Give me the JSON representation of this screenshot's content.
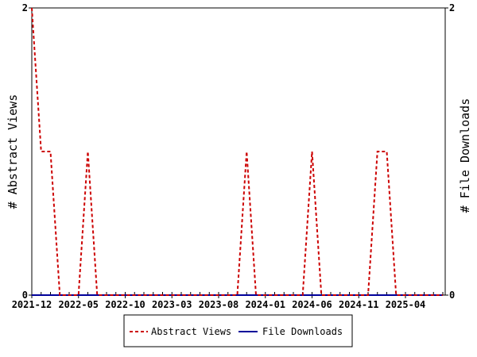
{
  "chart_data": {
    "type": "line",
    "x_start": "2021-12",
    "x": [
      "2021-12",
      "2022-01",
      "2022-02",
      "2022-03",
      "2022-04",
      "2022-05",
      "2022-06",
      "2022-07",
      "2022-08",
      "2022-09",
      "2022-10",
      "2022-11",
      "2022-12",
      "2023-01",
      "2023-02",
      "2023-03",
      "2023-04",
      "2023-05",
      "2023-06",
      "2023-07",
      "2023-08",
      "2023-09",
      "2023-10",
      "2023-11",
      "2023-12",
      "2024-01",
      "2024-02",
      "2024-03",
      "2024-04",
      "2024-05",
      "2024-06",
      "2024-07",
      "2024-08",
      "2024-09",
      "2024-10",
      "2024-11",
      "2024-12",
      "2025-01",
      "2025-02",
      "2025-03",
      "2025-04",
      "2025-05",
      "2025-06",
      "2025-07",
      "2025-08",
      "2025-09"
    ],
    "x_tick_labels": [
      "2021-12",
      "2022-05",
      "2022-10",
      "2023-03",
      "2023-08",
      "2024-01",
      "2024-06",
      "2024-11",
      "2025-04"
    ],
    "series": [
      {
        "name": "Abstract Views",
        "color": "#cc0000",
        "dash": "dashed",
        "values": [
          2,
          1,
          1,
          0,
          0,
          0,
          1,
          0,
          0,
          0,
          0,
          0,
          0,
          0,
          0,
          0,
          0,
          0,
          0,
          0,
          0,
          0,
          0,
          1,
          0,
          0,
          0,
          0,
          0,
          0,
          1,
          0,
          0,
          0,
          0,
          0,
          0,
          1,
          1,
          0,
          0,
          0,
          0,
          0,
          0,
          0
        ]
      },
      {
        "name": "File Downloads",
        "color": "#000099",
        "dash": "solid",
        "values": [
          0,
          0,
          0,
          0,
          0,
          0,
          0,
          0,
          0,
          0,
          0,
          0,
          0,
          0,
          0,
          0,
          0,
          0,
          0,
          0,
          0,
          0,
          0,
          0,
          0,
          0,
          0,
          0,
          0,
          0,
          0,
          0,
          0,
          0,
          0,
          0,
          0,
          0,
          0,
          0,
          0,
          0,
          0,
          0,
          0,
          0
        ]
      }
    ],
    "ylabel_left": "# Abstract Views",
    "ylabel_right": "# File Downloads",
    "ylim": [
      0,
      2
    ],
    "y_ticks_left": [
      "0",
      "2"
    ],
    "y_ticks_right": [
      "0",
      "2"
    ],
    "grid": false,
    "legend_placement": "bottom-center"
  }
}
